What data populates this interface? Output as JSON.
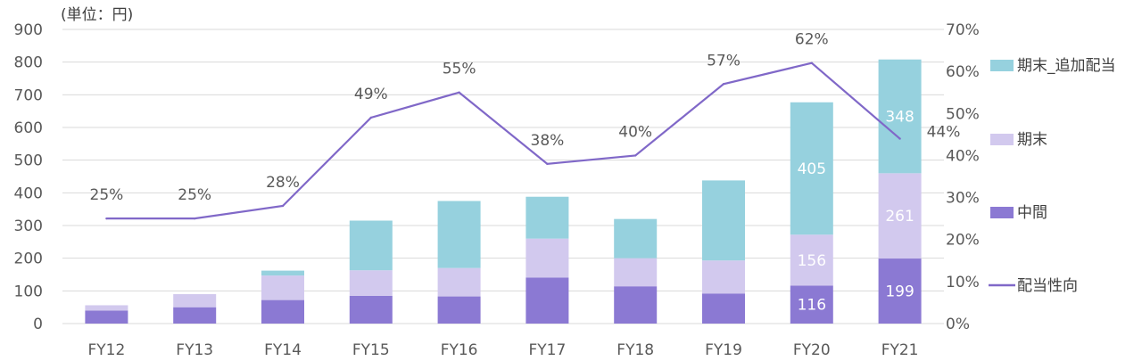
{
  "chart_data": {
    "type": "bar",
    "stacked": true,
    "unit_label": "(単位：円)",
    "categories": [
      "FY12",
      "FY13",
      "FY14",
      "FY15",
      "FY16",
      "FY17",
      "FY18",
      "FY19",
      "FY20",
      "FY21"
    ],
    "series": [
      {
        "name": "中間",
        "color": "#8b79d3",
        "values": [
          40,
          50,
          72,
          85,
          83,
          141,
          114,
          92,
          116,
          199
        ]
      },
      {
        "name": "期末",
        "color": "#d2c9ee",
        "values": [
          16,
          40,
          75,
          78,
          87,
          119,
          86,
          101,
          156,
          261
        ]
      },
      {
        "name": "期末_追加配当",
        "color": "#96d1de",
        "values": [
          0,
          0,
          15,
          152,
          205,
          128,
          120,
          245,
          405,
          348
        ]
      }
    ],
    "line_series": {
      "name": "配当性向",
      "color": "#8068c8",
      "values": [
        25,
        25,
        28,
        49,
        55,
        38,
        40,
        57,
        62,
        44
      ],
      "labels": [
        "25%",
        "25%",
        "28%",
        "49%",
        "55%",
        "38%",
        "40%",
        "57%",
        "62%",
        "44%"
      ]
    },
    "bar_labels": [
      {
        "series": 0,
        "index": 8,
        "text": "116"
      },
      {
        "series": 0,
        "index": 9,
        "text": "199"
      },
      {
        "series": 1,
        "index": 8,
        "text": "156"
      },
      {
        "series": 1,
        "index": 9,
        "text": "261"
      },
      {
        "series": 2,
        "index": 8,
        "text": "405"
      },
      {
        "series": 2,
        "index": 9,
        "text": "348"
      }
    ],
    "ylim": [
      0,
      900
    ],
    "y_ticks": [
      "0",
      "100",
      "200",
      "300",
      "400",
      "500",
      "600",
      "700",
      "800",
      "900"
    ],
    "y2lim": [
      0,
      70
    ],
    "y2_ticks": [
      "0%",
      "10%",
      "20%",
      "30%",
      "40%",
      "50%",
      "60%",
      "70%"
    ],
    "grid": true,
    "legend_position": "right",
    "legend": [
      {
        "label": "期末_追加配当",
        "kind": "box",
        "series": 2
      },
      {
        "label": "期末",
        "kind": "box",
        "series": 1
      },
      {
        "label": "中間",
        "kind": "box",
        "series": 0
      },
      {
        "label": "配当性向",
        "kind": "line"
      }
    ]
  }
}
